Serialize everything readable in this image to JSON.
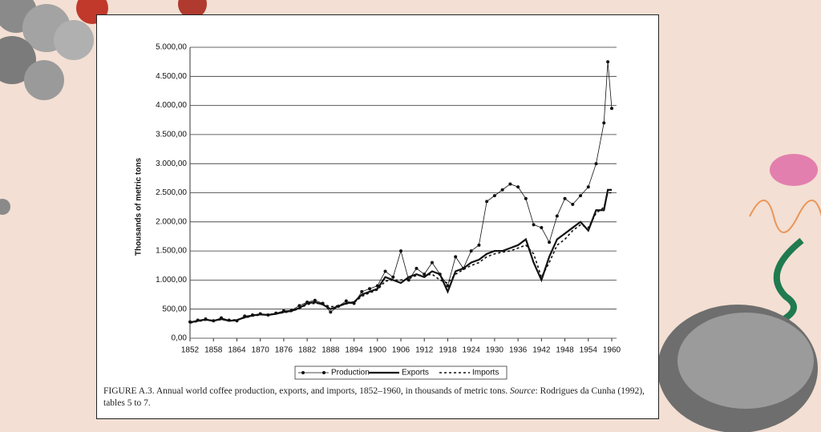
{
  "chart_data": {
    "type": "line",
    "y_label": "Thousands of metric tons",
    "caption": [
      "FIGURE A.3. Annual world coffee production, exports, and imports, 1852–1960, in thousands of metric tons. ",
      "Source",
      ": Rodrigues da Cunha (1992), tables 5 to 7."
    ],
    "x": [
      1852,
      1854,
      1856,
      1858,
      1860,
      1862,
      1864,
      1866,
      1868,
      1870,
      1872,
      1874,
      1876,
      1878,
      1880,
      1882,
      1884,
      1886,
      1888,
      1890,
      1892,
      1894,
      1896,
      1898,
      1900,
      1902,
      1904,
      1906,
      1908,
      1910,
      1912,
      1914,
      1916,
      1918,
      1920,
      1922,
      1924,
      1926,
      1928,
      1930,
      1932,
      1934,
      1936,
      1938,
      1940,
      1942,
      1944,
      1946,
      1948,
      1950,
      1952,
      1954,
      1956,
      1958,
      1959,
      1960
    ],
    "series": [
      {
        "name": "Production",
        "color": "#111111",
        "style": "dots",
        "values": [
          280,
          310,
          330,
          300,
          350,
          310,
          300,
          380,
          400,
          420,
          400,
          430,
          470,
          480,
          560,
          620,
          650,
          600,
          450,
          550,
          640,
          600,
          800,
          850,
          900,
          1150,
          1050,
          1500,
          1000,
          1200,
          1100,
          1300,
          1100,
          900,
          1400,
          1200,
          1500,
          1600,
          2350,
          2450,
          2550,
          2650,
          2600,
          2400,
          1950,
          1900,
          1650,
          2100,
          2400,
          2300,
          2450,
          2600,
          3000,
          3700,
          4750,
          3950
        ]
      },
      {
        "name": "Exports",
        "color": "#111111",
        "style": "thick",
        "values": [
          270,
          300,
          320,
          300,
          330,
          300,
          310,
          360,
          390,
          410,
          400,
          420,
          450,
          470,
          520,
          600,
          620,
          580,
          500,
          550,
          600,
          620,
          750,
          800,
          850,
          1050,
          1000,
          950,
          1050,
          1100,
          1050,
          1150,
          1100,
          800,
          1150,
          1200,
          1300,
          1350,
          1450,
          1500,
          1500,
          1550,
          1600,
          1700,
          1300,
          1000,
          1400,
          1700,
          1800,
          1900,
          2000,
          1850,
          2200,
          2200,
          2550,
          2550
        ]
      },
      {
        "name": "Imports",
        "color": "#111111",
        "style": "dashed",
        "values": [
          260,
          290,
          310,
          300,
          320,
          310,
          320,
          350,
          380,
          400,
          410,
          420,
          440,
          460,
          510,
          580,
          600,
          590,
          540,
          560,
          590,
          610,
          720,
          780,
          830,
          980,
          1000,
          1000,
          1020,
          1080,
          1080,
          1100,
          1000,
          950,
          1100,
          1180,
          1250,
          1300,
          1400,
          1450,
          1480,
          1500,
          1550,
          1600,
          1450,
          1050,
          1300,
          1600,
          1700,
          1850,
          1950,
          1900,
          2150,
          2250,
          2500,
          2500
        ]
      }
    ],
    "xlim": [
      1852,
      1960
    ],
    "xticks": [
      1852,
      1858,
      1864,
      1870,
      1876,
      1882,
      1888,
      1894,
      1900,
      1906,
      1912,
      1918,
      1924,
      1930,
      1936,
      1942,
      1948,
      1954,
      1960
    ],
    "ylim": [
      0,
      5000
    ],
    "yticks": [
      {
        "value": 0,
        "label": "0,00"
      },
      {
        "value": 500,
        "label": "500,00"
      },
      {
        "value": 1000,
        "label": "1.000,00"
      },
      {
        "value": 1500,
        "label": "1.500,00"
      },
      {
        "value": 2000,
        "label": "2.000,00"
      },
      {
        "value": 2500,
        "label": "2.500,00"
      },
      {
        "value": 3000,
        "label": "3.000,00"
      },
      {
        "value": 3500,
        "label": "3.500,00"
      },
      {
        "value": 4000,
        "label": "4.000,00"
      },
      {
        "value": 4500,
        "label": "4.500,00"
      },
      {
        "value": 5000,
        "label": "5.000,00"
      }
    ],
    "grid": true,
    "legend": "bottom"
  }
}
